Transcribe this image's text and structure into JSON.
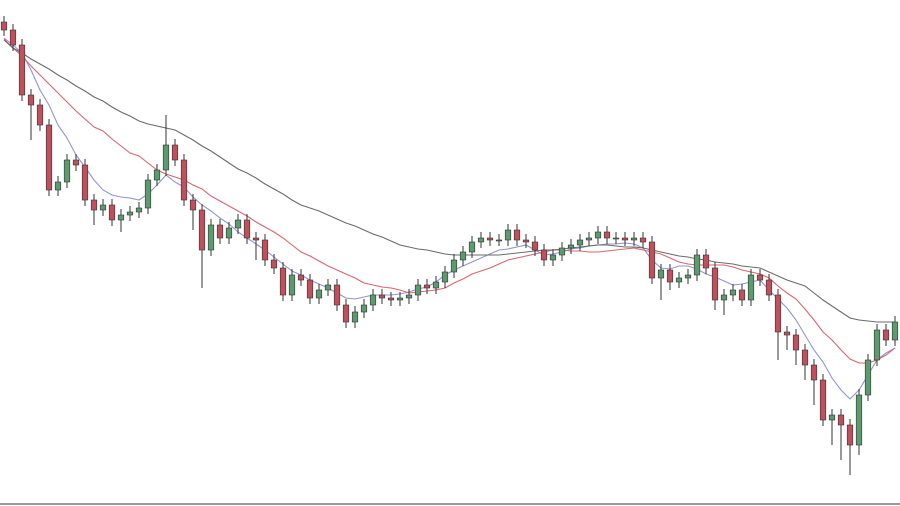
{
  "chart_data": {
    "type": "candlestick",
    "ylim": [
      0,
      500
    ],
    "up_color": "#5b9b6e",
    "down_color": "#c0505c",
    "wick_color": "#333333",
    "open": [
      478,
      470,
      455,
      405,
      395,
      375,
      310,
      318,
      340,
      335,
      300,
      290,
      295,
      280,
      285,
      288,
      292,
      320,
      330,
      355,
      340,
      300,
      290,
      250,
      275,
      262,
      272,
      280,
      262,
      260,
      240,
      232,
      205,
      225,
      220,
      202,
      210,
      215,
      195,
      178,
      188,
      195,
      205,
      202,
      200,
      202,
      205,
      215,
      212,
      218,
      228,
      240,
      248,
      258,
      262,
      260,
      260,
      270,
      260,
      258,
      250,
      240,
      245,
      252,
      255,
      260,
      262,
      268,
      262,
      262,
      260,
      262,
      258,
      222,
      230,
      218,
      222,
      225,
      245,
      232,
      200,
      205,
      210,
      200,
      225,
      220,
      205,
      168,
      165,
      150,
      135,
      120,
      80,
      85,
      75,
      55,
      105,
      140,
      170,
      160
    ],
    "high": [
      484,
      476,
      461,
      411,
      401,
      381,
      324,
      346,
      346,
      341,
      306,
      301,
      301,
      291,
      294,
      298,
      326,
      336,
      385,
      361,
      346,
      306,
      296,
      281,
      281,
      278,
      286,
      286,
      268,
      266,
      246,
      238,
      231,
      231,
      226,
      216,
      221,
      221,
      201,
      194,
      201,
      211,
      211,
      208,
      208,
      211,
      221,
      221,
      224,
      234,
      246,
      254,
      264,
      268,
      268,
      266,
      276,
      276,
      266,
      264,
      256,
      251,
      258,
      261,
      266,
      268,
      274,
      274,
      268,
      268,
      268,
      268,
      264,
      236,
      236,
      228,
      231,
      251,
      251,
      238,
      211,
      216,
      216,
      231,
      231,
      226,
      211,
      174,
      171,
      156,
      141,
      126,
      91,
      91,
      81,
      111,
      146,
      176,
      176,
      184
    ],
    "low": [
      464,
      449,
      399,
      360,
      369,
      304,
      304,
      312,
      329,
      294,
      275,
      284,
      274,
      268,
      279,
      282,
      286,
      314,
      324,
      334,
      294,
      270,
      212,
      244,
      256,
      256,
      266,
      256,
      240,
      234,
      226,
      199,
      199,
      214,
      196,
      196,
      204,
      189,
      172,
      172,
      182,
      189,
      196,
      194,
      194,
      196,
      199,
      206,
      206,
      212,
      222,
      234,
      242,
      252,
      254,
      254,
      254,
      254,
      252,
      244,
      234,
      234,
      239,
      246,
      249,
      254,
      256,
      256,
      256,
      254,
      254,
      252,
      216,
      200,
      210,
      212,
      216,
      219,
      226,
      190,
      185,
      199,
      194,
      194,
      214,
      199,
      140,
      150,
      135,
      120,
      95,
      74,
      55,
      40,
      25,
      45,
      99,
      134,
      154,
      154
    ],
    "close": [
      470,
      455,
      405,
      395,
      375,
      310,
      318,
      340,
      335,
      300,
      290,
      295,
      280,
      285,
      288,
      292,
      320,
      330,
      355,
      340,
      300,
      290,
      250,
      275,
      262,
      272,
      280,
      262,
      260,
      240,
      232,
      205,
      225,
      220,
      202,
      210,
      215,
      195,
      178,
      188,
      195,
      205,
      202,
      200,
      202,
      205,
      215,
      212,
      218,
      228,
      240,
      248,
      258,
      262,
      260,
      260,
      270,
      260,
      258,
      250,
      240,
      245,
      252,
      255,
      260,
      262,
      268,
      262,
      262,
      260,
      262,
      258,
      222,
      230,
      218,
      222,
      225,
      245,
      232,
      200,
      205,
      210,
      200,
      225,
      220,
      205,
      168,
      165,
      150,
      135,
      120,
      80,
      85,
      75,
      55,
      105,
      140,
      170,
      160,
      178
    ],
    "lines": [
      {
        "color": "#8f95d6",
        "values": [
          462,
          455,
          447,
          430,
          410,
          395,
          375,
          362,
          345,
          333,
          320,
          310,
          305,
          303,
          302,
          300,
          306,
          315,
          325,
          318,
          313,
          303,
          295,
          289,
          282,
          276,
          268,
          262,
          256,
          250,
          243,
          236,
          229,
          225,
          220,
          216,
          212,
          207,
          202,
          201,
          203,
          205,
          205,
          205,
          206,
          208,
          211,
          213,
          218,
          225,
          230,
          234,
          238,
          242,
          246,
          250,
          251,
          253,
          255,
          250,
          245,
          246,
          248,
          251,
          252,
          254,
          255,
          256,
          256,
          257,
          256,
          252,
          240,
          232,
          231,
          234,
          234,
          231,
          226,
          223,
          219,
          215,
          216,
          218,
          220,
          210,
          201,
          192,
          180,
          165,
          150,
          138,
          122,
          110,
          101,
          110,
          125,
          140,
          147,
          152
        ]
      },
      {
        "color": "#d9666e",
        "values": [
          461,
          452,
          444,
          434,
          425,
          416,
          407,
          398,
          389,
          381,
          373,
          369,
          361,
          354,
          347,
          344,
          337,
          330,
          326,
          323,
          320,
          315,
          311,
          304,
          299,
          294,
          289,
          284,
          278,
          273,
          268,
          262,
          255,
          248,
          244,
          239,
          234,
          230,
          226,
          222,
          217,
          215,
          213,
          212,
          210,
          207,
          208,
          209,
          210,
          212,
          217,
          221,
          226,
          229,
          232,
          236,
          240,
          242,
          244,
          246,
          248,
          250,
          250,
          249,
          249,
          248,
          248,
          249,
          250,
          251,
          252,
          250,
          248,
          246,
          242,
          238,
          236,
          235,
          235,
          235,
          235,
          233,
          230,
          228,
          226,
          222,
          214,
          207,
          201,
          191,
          180,
          168,
          160,
          150,
          141,
          137,
          137,
          140,
          145,
          152
        ]
      },
      {
        "color": "#6b6b6b",
        "values": [
          460,
          452,
          447,
          441,
          436,
          431,
          425,
          420,
          414,
          409,
          403,
          399,
          393,
          388,
          384,
          379,
          376,
          374,
          372,
          370,
          365,
          360,
          354,
          349,
          343,
          337,
          331,
          327,
          322,
          316,
          311,
          306,
          300,
          295,
          292,
          289,
          285,
          281,
          277,
          274,
          270,
          266,
          263,
          259,
          255,
          253,
          251,
          250,
          248,
          246,
          245,
          245,
          245,
          245,
          245,
          245,
          246,
          247,
          248,
          249,
          250,
          250,
          251,
          252,
          253,
          254,
          255,
          255,
          254,
          253,
          253,
          252,
          250,
          248,
          246,
          244,
          243,
          241,
          240,
          238,
          237,
          236,
          234,
          233,
          232,
          228,
          224,
          220,
          217,
          214,
          207,
          200,
          194,
          188,
          182,
          180,
          179,
          178,
          178,
          178
        ]
      }
    ]
  }
}
